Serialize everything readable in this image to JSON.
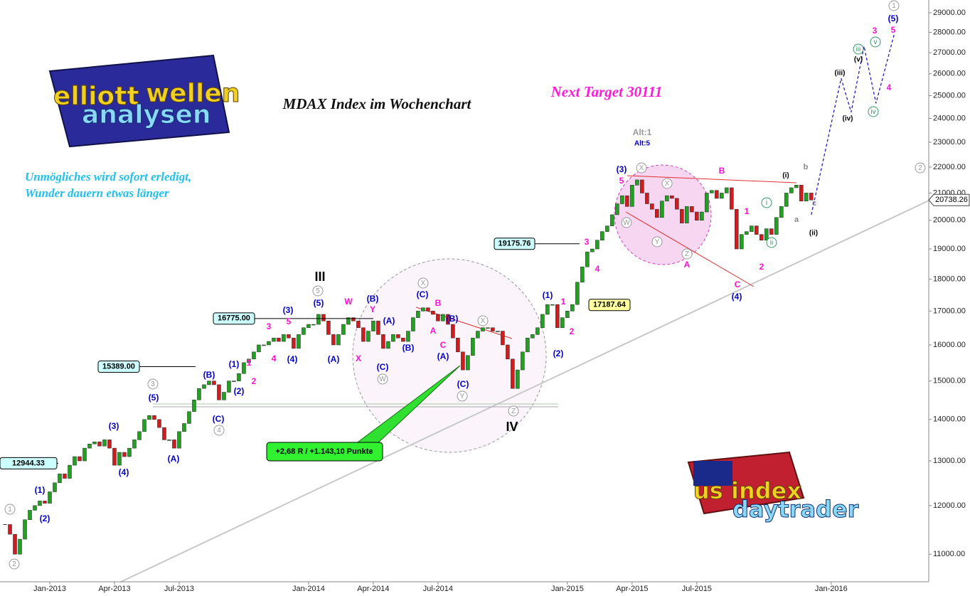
{
  "chart_data": {
    "type": "candlestick",
    "title": "MDAX Index im Wochenchart",
    "target": "Next Target 30111",
    "motto": [
      "Unmögliches wird sofort erledigt,",
      "Wunder dauern etwas länger"
    ],
    "values": [
      11600,
      11400,
      11000,
      11300,
      11700,
      11900,
      12000,
      12100,
      12050,
      12300,
      12500,
      12700,
      12600,
      12900,
      13100,
      13000,
      13300,
      13400,
      13450,
      13350,
      13500,
      13300,
      12900,
      13200,
      13100,
      13300,
      13500,
      13700,
      14000,
      14100,
      14000,
      13800,
      13500,
      13500,
      13300,
      13700,
      13900,
      14200,
      14500,
      14800,
      14900,
      15000,
      14900,
      14500,
      14700,
      15000,
      15000,
      15200,
      15500,
      15600,
      15800,
      16000,
      16000,
      16100,
      16200,
      16100,
      16300,
      16200,
      15900,
      16300,
      16500,
      16600,
      16600,
      16900,
      16700,
      16300,
      16000,
      16300,
      16600,
      16800,
      16700,
      16500,
      16100,
      16400,
      16700,
      16300,
      15900,
      16100,
      16300,
      16200,
      16100,
      16400,
      16800,
      17000,
      17100,
      17000,
      16900,
      16700,
      16900,
      16600,
      16200,
      15800,
      15300,
      15700,
      16200,
      16400,
      16500,
      16500,
      16400,
      16400,
      16000,
      15600,
      14800,
      15300,
      15800,
      16200,
      16300,
      16500,
      16900,
      17200,
      17200,
      16500,
      16800,
      17000,
      17200,
      17900,
      18400,
      18900,
      19000,
      19300,
      19600,
      19800,
      20200,
      20600,
      20900,
      20500,
      21300,
      21500,
      21000,
      20600,
      20400,
      20100,
      20700,
      20900,
      20800,
      20400,
      19900,
      20500,
      20300,
      20000,
      20300,
      21000,
      21100,
      20800,
      21000,
      21200,
      20400,
      19000,
      19500,
      19600,
      19800,
      19500,
      19300,
      19700,
      19500,
      20100,
      20500,
      21000,
      21200,
      21300,
      20700,
      21000,
      20740
    ],
    "up_color": "#22a022",
    "down_color": "#d01c1c",
    "xlim": [
      -1,
      185.6
    ],
    "xticks": [
      {
        "value": 9,
        "label": "Jan-2013"
      },
      {
        "value": 22,
        "label": "Apr-2013"
      },
      {
        "value": 35,
        "label": "Jul-2013"
      },
      {
        "value": 61,
        "label": "Jan-2014"
      },
      {
        "value": 74,
        "label": "Apr-2014"
      },
      {
        "value": 87,
        "label": "Jul-2014"
      },
      {
        "value": 113,
        "label": "Jan-2015"
      },
      {
        "value": 126,
        "label": "Apr-2015"
      },
      {
        "value": 139,
        "label": "Jul-2015"
      },
      {
        "value": 166,
        "label": "Jan-2016"
      }
    ],
    "ylim": [
      10470,
      29670
    ],
    "log_scale": true,
    "yticks": [
      {
        "value": 11000,
        "label": "11000.00"
      },
      {
        "value": 12000,
        "label": "12000.00"
      },
      {
        "value": 13000,
        "label": "13000.00"
      },
      {
        "value": 14000,
        "label": "14000.00"
      },
      {
        "value": 15000,
        "label": "15000.00"
      },
      {
        "value": 16000,
        "label": "16000.00"
      },
      {
        "value": 17000,
        "label": "17000.00"
      },
      {
        "value": 18000,
        "label": "18000.00"
      },
      {
        "value": 19000,
        "label": "19000.00"
      },
      {
        "value": 20000,
        "label": "20000.00"
      },
      {
        "value": 21000,
        "label": "21000.00"
      },
      {
        "value": 22000,
        "label": "22000.00"
      },
      {
        "value": 23000,
        "label": "23000.00"
      },
      {
        "value": 24000,
        "label": "24000.00"
      },
      {
        "value": 25000,
        "label": "25000.00"
      },
      {
        "value": 26000,
        "label": "26000.00"
      },
      {
        "value": 27000,
        "label": "27000.00"
      },
      {
        "value": 28000,
        "label": "28000.00"
      },
      {
        "value": 29000,
        "label": "29000.00"
      }
    ],
    "last_price": {
      "value": 20738.26,
      "label": "20738.26"
    },
    "price_labels": [
      {
        "value": 12944.33,
        "label": "12944.33"
      },
      {
        "value": 15389.0,
        "label": "15389.00"
      },
      {
        "value": 16775.0,
        "label": "16775.00"
      },
      {
        "value": 19175.76,
        "label": "19175.76"
      },
      {
        "value": 17187.64,
        "label": "17187.64"
      }
    ],
    "projection": {
      "x": [
        162,
        168,
        170,
        172.6,
        175,
        178.7
      ],
      "values": [
        20200,
        25790,
        24270,
        27310,
        24660,
        27950
      ],
      "color": "#2020c0"
    },
    "trade_note": "+2,68 R / +1.143,10 Punkte",
    "alt_labels": [
      "Alt:1",
      "Alt:5"
    ],
    "wave_labels": {
      "circled_gray": [
        "1",
        "2",
        "3",
        "4",
        "5",
        "X",
        "W",
        "Y",
        "X",
        "Z",
        "X",
        "W",
        "X",
        "Y",
        "Z",
        "2",
        "1"
      ],
      "circled_green": [
        "i",
        "ii",
        "iii",
        "iv",
        "v"
      ],
      "blue": [
        "(1)",
        "(2)",
        "(3)",
        "(4)",
        "(5)",
        "(A)",
        "(B)",
        "(C)",
        "(1)",
        "(2)",
        "(3)",
        "(4)",
        "(5)",
        "(A)",
        "(B)",
        "(A)",
        "(B)",
        "(C)",
        "(C)",
        "(B)",
        "(A)",
        "(C)",
        "(1)",
        "(2)",
        "(3)",
        "(4)",
        "(5)"
      ],
      "magenta": [
        "3",
        "5",
        "4",
        "1",
        "2",
        "W",
        "Y",
        "X",
        "B",
        "A",
        "C",
        "1",
        "2",
        "3",
        "4",
        "5",
        "B",
        "A",
        "C",
        "1",
        "2",
        "3",
        "4",
        "5"
      ],
      "black_big": [
        "III",
        "IV"
      ],
      "black": [
        "(i)",
        "(ii)",
        "(iii)",
        "(iv)",
        "(v)"
      ],
      "gray": [
        "a",
        "b",
        "c"
      ]
    }
  },
  "logos": {
    "left": [
      "elliott",
      "wellen",
      "analysen"
    ],
    "right": [
      "us index",
      "daytrader"
    ]
  }
}
